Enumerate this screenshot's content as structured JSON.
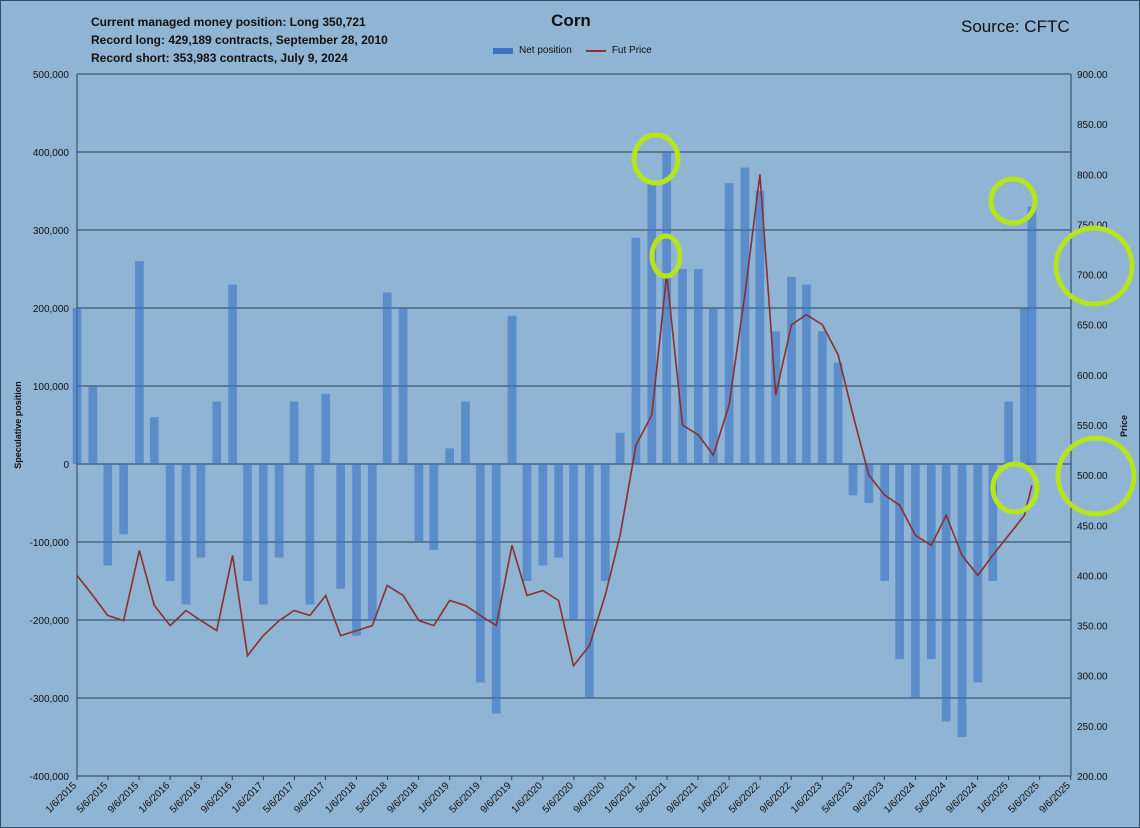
{
  "header": {
    "lines": [
      "Current managed money position: Long 350,721",
      "Record long: 429,189 contracts, September 28, 2010",
      "Record short: 353,983 contracts, July 9, 2024"
    ],
    "source": "Source: CFTC"
  },
  "colors": {
    "background": "#8fb4d4",
    "bars": "#3a73c4",
    "price_line": "#8b2f2f",
    "highlight_circles": "#b5e61d",
    "grid": "#2b3f55"
  },
  "chart_data": {
    "type": "bar",
    "title": "Corn",
    "ylabel": "Speculative position",
    "y2label": "Price",
    "ylim": [
      -400000,
      500000
    ],
    "y2lim": [
      200,
      900
    ],
    "legend": [
      "Net position",
      "Fut Price"
    ],
    "legend_position": "top",
    "yticks": [
      "500,000",
      "400,000",
      "300,000",
      "200,000",
      "100,000",
      "0",
      "-100,000",
      "-200,000",
      "-300,000",
      "-400,000"
    ],
    "y2ticks": [
      "900.00",
      "850.00",
      "800.00",
      "750.00",
      "700.00",
      "650.00",
      "600.00",
      "550.00",
      "500.00",
      "450.00",
      "400.00",
      "350.00",
      "300.00",
      "250.00",
      "200.00"
    ],
    "xticks": [
      "1/6/2015",
      "5/6/2015",
      "9/6/2015",
      "1/6/2016",
      "5/6/2016",
      "9/6/2016",
      "1/6/2017",
      "5/6/2017",
      "9/6/2017",
      "1/6/2018",
      "5/6/2018",
      "9/6/2018",
      "1/6/2019",
      "5/6/2019",
      "9/6/2019",
      "1/6/2020",
      "5/6/2020",
      "9/6/2020",
      "1/6/2021",
      "5/6/2021",
      "9/6/2021",
      "1/6/2022",
      "5/6/2022",
      "9/6/2022",
      "1/6/2023",
      "5/6/2023",
      "9/6/2023",
      "1/6/2024",
      "5/6/2024",
      "9/6/2024",
      "1/6/2025",
      "5/6/2025",
      "9/6/2025"
    ],
    "x": [
      2015.0,
      2015.17,
      2015.33,
      2015.5,
      2015.67,
      2015.83,
      2016.0,
      2016.17,
      2016.33,
      2016.5,
      2016.67,
      2016.83,
      2017.0,
      2017.17,
      2017.33,
      2017.5,
      2017.67,
      2017.83,
      2018.0,
      2018.17,
      2018.33,
      2018.5,
      2018.67,
      2018.83,
      2019.0,
      2019.17,
      2019.33,
      2019.5,
      2019.67,
      2019.83,
      2020.0,
      2020.17,
      2020.33,
      2020.5,
      2020.67,
      2020.83,
      2021.0,
      2021.17,
      2021.33,
      2021.5,
      2021.67,
      2021.83,
      2022.0,
      2022.17,
      2022.33,
      2022.5,
      2022.67,
      2022.83,
      2023.0,
      2023.17,
      2023.33,
      2023.5,
      2023.67,
      2023.83,
      2024.0,
      2024.17,
      2024.33,
      2024.5,
      2024.67,
      2024.83,
      2025.0,
      2025.17,
      2025.25
    ],
    "series": [
      {
        "name": "Net position",
        "values": [
          200000,
          100000,
          -130000,
          -90000,
          260000,
          60000,
          -150000,
          -180000,
          -120000,
          80000,
          230000,
          -150000,
          -180000,
          -120000,
          80000,
          -180000,
          90000,
          -160000,
          -220000,
          -200000,
          220000,
          200000,
          -100000,
          -110000,
          20000,
          80000,
          -280000,
          -320000,
          190000,
          -150000,
          -130000,
          -120000,
          -200000,
          -300000,
          -150000,
          40000,
          290000,
          360000,
          400000,
          250000,
          250000,
          200000,
          360000,
          380000,
          350000,
          170000,
          240000,
          230000,
          170000,
          130000,
          -40000,
          -50000,
          -150000,
          -250000,
          -300000,
          -250000,
          -330000,
          -350000,
          -280000,
          -150000,
          80000,
          200000,
          330000
        ]
      },
      {
        "name": "Fut Price",
        "values": [
          400,
          380,
          360,
          355,
          425,
          370,
          350,
          365,
          355,
          345,
          420,
          320,
          340,
          355,
          365,
          360,
          380,
          340,
          345,
          350,
          390,
          380,
          355,
          350,
          375,
          370,
          360,
          350,
          430,
          380,
          385,
          375,
          310,
          330,
          380,
          440,
          530,
          560,
          700,
          550,
          540,
          520,
          570,
          680,
          800,
          580,
          650,
          660,
          650,
          620,
          560,
          500,
          480,
          470,
          440,
          430,
          460,
          420,
          400,
          420,
          440,
          460,
          490
        ]
      }
    ]
  }
}
